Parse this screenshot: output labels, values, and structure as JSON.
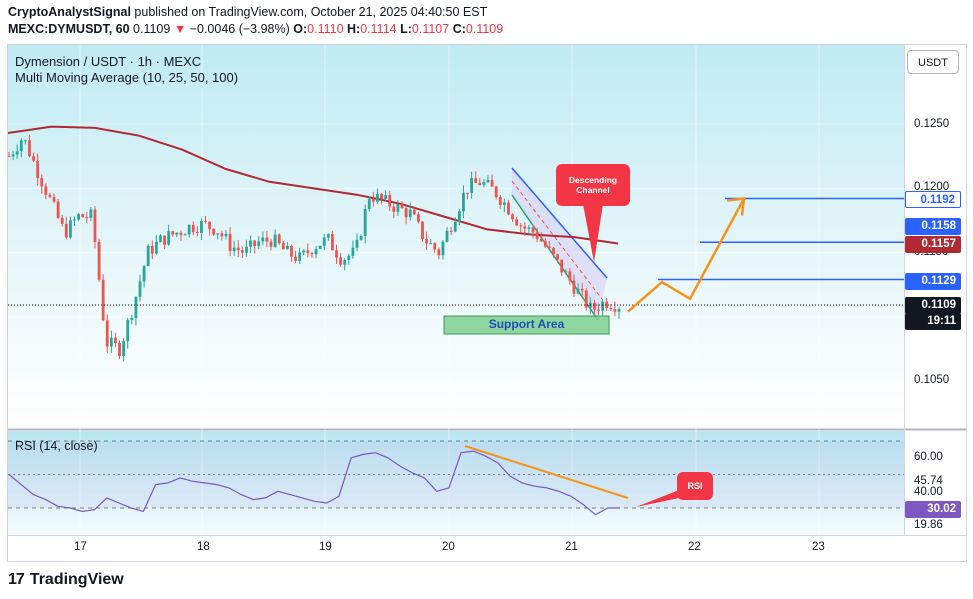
{
  "header": {
    "author": "CryptoAnalystSignal",
    "published_text": "published on TradingView.com, October 21, 2025 04:40:50 EST",
    "symbol": "MEXC:DYMUSDT, 60",
    "last": "0.1109",
    "change": "−0.0046 (−3.98%)",
    "o_label": "O:",
    "o_value": "0.1110",
    "h_label": "H:",
    "h_value": "0.1114",
    "l_label": "L:",
    "l_value": "0.1107",
    "c_label": "C:",
    "c_value": "0.1109"
  },
  "chart": {
    "title": "Dymension / USDT · 1h · MEXC",
    "indicator": "Multi Moving Average (10, 25, 50, 100)",
    "currency_button": "USDT",
    "annotation_descending": "Descending Channel",
    "annotation_support": "Support Area",
    "annotation_rsi": "RSI"
  },
  "price_axis": {
    "ticks": [
      "0.1250",
      "0.1200",
      "0.1150",
      "0.1050"
    ],
    "tags": [
      {
        "value": "0.1192",
        "style": "outline"
      },
      {
        "value": "0.1158",
        "style": "blue"
      },
      {
        "value": "0.1157",
        "style": "red"
      },
      {
        "value": "0.1129",
        "style": "blue"
      },
      {
        "value": "0.1109",
        "style": "dark"
      },
      {
        "value": "19:11",
        "style": "dark"
      }
    ]
  },
  "rsi": {
    "title": "RSI (14, close)",
    "ticks": [
      "60.00",
      "45.74",
      "40.00",
      "19.86"
    ],
    "current": "30.02"
  },
  "time_axis": {
    "labels": [
      "17",
      "18",
      "19",
      "20",
      "21",
      "22",
      "23"
    ]
  },
  "footer": {
    "brand": "TradingView",
    "logo_mark": "17"
  },
  "colors": {
    "up": "#26a69a",
    "down": "#ef5350",
    "ma100": "#b22833",
    "forecast": "#f7931a",
    "level": "#2962ff",
    "rsi_line": "#7e57c2",
    "bg_top": "#c6eef6",
    "bg_bottom": "#ffffff"
  },
  "chart_data": {
    "type": "candlestick",
    "title": "Dymension / USDT · 1h · MEXC",
    "x_labels": [
      "17",
      "18",
      "19",
      "20",
      "21",
      "22",
      "23"
    ],
    "ylim": [
      0.1015,
      0.1285
    ],
    "price_ticks": [
      0.125,
      0.12,
      0.115,
      0.105
    ],
    "levels": [
      0.1192,
      0.1158,
      0.1129
    ],
    "moving_average_100": [
      0.1243,
      0.1248,
      0.1247,
      0.1241,
      0.123,
      0.1215,
      0.1205,
      0.12,
      0.1195,
      0.1188,
      0.1178,
      0.1168,
      0.1164,
      0.1162,
      0.1157
    ],
    "last_price": 0.1109,
    "candle_path": [
      0.1225,
      0.124,
      0.1215,
      0.119,
      0.1165,
      0.1178,
      0.1178,
      0.108,
      0.1075,
      0.111,
      0.115,
      0.116,
      0.1165,
      0.117,
      0.1172,
      0.1168,
      0.1155,
      0.115,
      0.1158,
      0.116,
      0.115,
      0.1145,
      0.1155,
      0.116,
      0.1145,
      0.115,
      0.1195,
      0.119,
      0.1185,
      0.118,
      0.116,
      0.115,
      0.1175,
      0.12,
      0.1205,
      0.1198,
      0.1185,
      0.117,
      0.1165,
      0.115,
      0.1135,
      0.112,
      0.1105,
      0.1112,
      0.1109
    ],
    "forecast_path": [
      0.1104,
      0.1127,
      0.1114,
      0.1192
    ],
    "rsi": {
      "ylim": [
        15,
        75
      ],
      "levels": [
        70,
        50,
        30
      ],
      "ticks": [
        60.0,
        45.74,
        40.0,
        19.86
      ],
      "current": 30.02,
      "series": [
        50,
        44,
        38,
        35,
        31,
        30,
        28,
        29,
        36,
        33,
        30,
        28,
        44,
        45,
        48,
        46,
        45,
        44,
        42,
        38,
        35,
        36,
        40,
        38,
        36,
        34,
        33,
        37,
        60,
        62,
        63,
        60,
        55,
        51,
        48,
        40,
        42,
        63,
        64,
        61,
        57,
        49,
        45,
        43,
        42,
        40,
        37,
        32,
        26,
        30,
        30
      ]
    }
  }
}
